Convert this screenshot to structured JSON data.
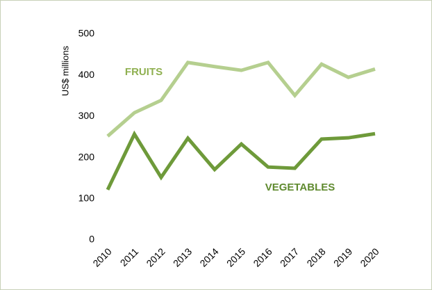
{
  "chart_data": {
    "type": "line",
    "y_label": "US$ millions",
    "categories": [
      "2010",
      "2011",
      "2012",
      "2013",
      "2014",
      "2015",
      "2016",
      "2017",
      "2018",
      "2019",
      "2020"
    ],
    "series": [
      {
        "name": "FRUITS",
        "color": "#b5cf8f",
        "label_color": "#8fb050",
        "values": [
          252,
          309,
          339,
          431,
          421,
          412,
          431,
          351,
          427,
          395,
          415
        ]
      },
      {
        "name": "VEGETABLES",
        "color": "#6e9a3a",
        "label_color": "#5f8a2f",
        "values": [
          122,
          257,
          152,
          247,
          171,
          233,
          177,
          174,
          245,
          248,
          258
        ]
      }
    ],
    "ylim": [
      0,
      500
    ],
    "yticks": [
      0,
      100,
      200,
      300,
      400,
      500
    ],
    "grid": false
  }
}
